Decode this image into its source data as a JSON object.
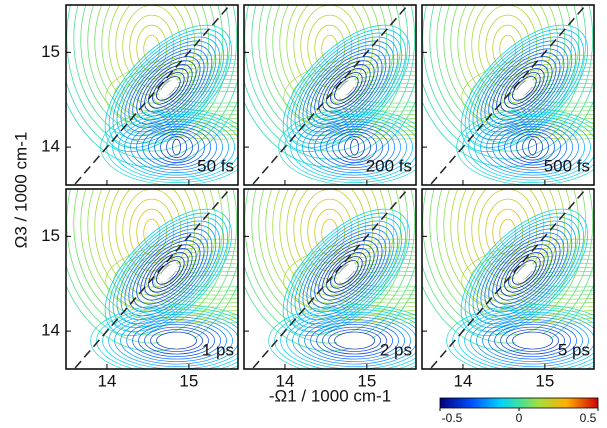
{
  "chart_data": {
    "type": "contour",
    "xlabel": "-Ω1 / 1000 cm-1",
    "ylabel": "Ω3 / 1000 cm-1",
    "xlim": [
      13.5,
      15.6
    ],
    "ylim": [
      13.6,
      15.5
    ],
    "xticks": [
      14,
      15
    ],
    "yticks": [
      14,
      15
    ],
    "panels": [
      "50 fs",
      "200 fs",
      "500 fs",
      "1 ps",
      "2 ps",
      "5 ps"
    ],
    "colorbar": {
      "lim": [
        -0.5,
        0.5
      ],
      "ticks": [
        -0.5,
        0,
        0.5
      ]
    }
  }
}
